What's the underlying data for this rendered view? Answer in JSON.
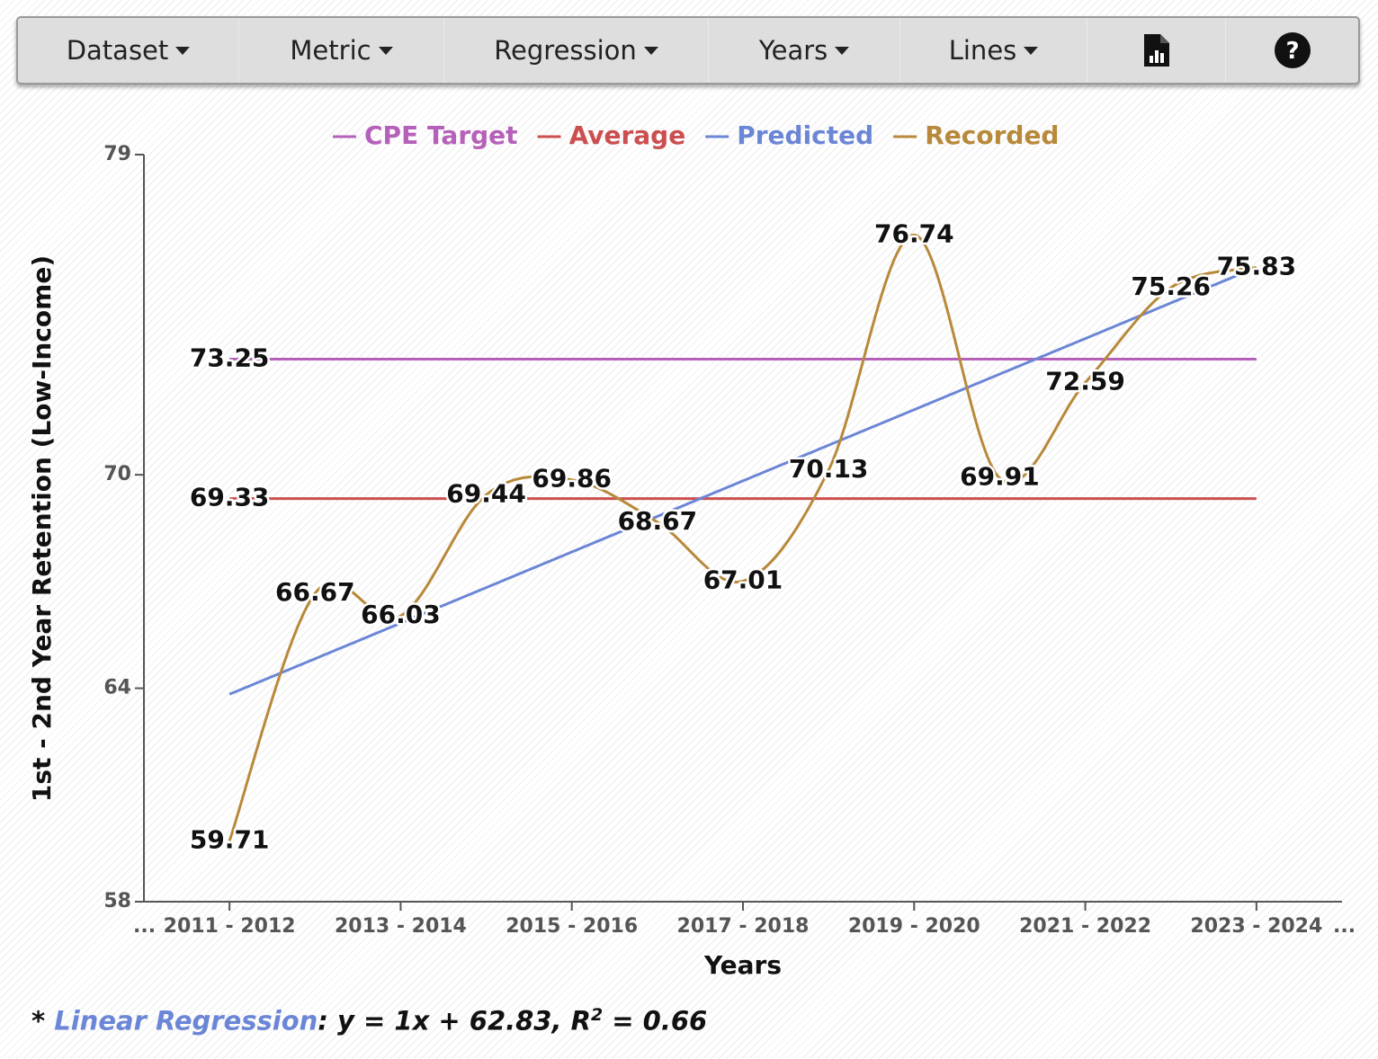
{
  "toolbar": {
    "buttons": [
      "Dataset",
      "Metric",
      "Regression",
      "Years",
      "Lines"
    ]
  },
  "chart_data": {
    "type": "line",
    "y_label": "1st - 2nd Year Retention (Low-Income)",
    "x_label": "Years",
    "x_overflow_labels": [
      "...",
      "..."
    ],
    "categories": [
      "2011 - 2012",
      null,
      "2013 - 2014",
      null,
      "2015 - 2016",
      null,
      "2017 - 2018",
      null,
      "2019 - 2020",
      null,
      "2021 - 2022",
      null,
      "2023 - 2024"
    ],
    "ylim": [
      58,
      79
    ],
    "yticks": [
      58,
      64,
      70,
      79
    ],
    "grid": false,
    "legend": "top",
    "series": [
      {
        "name": "CPE Target",
        "color": "#b561b9",
        "curve": "straight",
        "data_labels": "first",
        "values": [
          73.25,
          73.25,
          73.25,
          73.25,
          73.25,
          73.25,
          73.25,
          73.25,
          73.25,
          73.25,
          73.25,
          73.25,
          73.25
        ]
      },
      {
        "name": "Average",
        "color": "#cc4f4f",
        "curve": "straight",
        "data_labels": "first",
        "values": [
          69.33,
          69.33,
          69.33,
          69.33,
          69.33,
          69.33,
          69.33,
          69.33,
          69.33,
          69.33,
          69.33,
          69.33,
          69.33
        ]
      },
      {
        "name": "Predicted",
        "color": "#6b86d6",
        "curve": "straight",
        "data_labels": "none",
        "values": [
          63.83,
          64.83,
          65.83,
          66.83,
          67.83,
          68.83,
          69.83,
          70.83,
          71.83,
          72.83,
          73.83,
          74.83,
          75.83
        ]
      },
      {
        "name": "Recorded",
        "color": "#b8893a",
        "curve": "smooth",
        "data_labels": "all",
        "values": [
          59.71,
          66.67,
          66.03,
          69.44,
          69.86,
          68.67,
          67.01,
          70.13,
          76.74,
          69.91,
          72.59,
          75.26,
          75.83
        ]
      }
    ]
  },
  "footnote": {
    "prefix": "* ",
    "method": "Linear Regression",
    "equation": ": y = 1x + 62.83, R",
    "superscript": "2",
    "rest": " = 0.66"
  }
}
